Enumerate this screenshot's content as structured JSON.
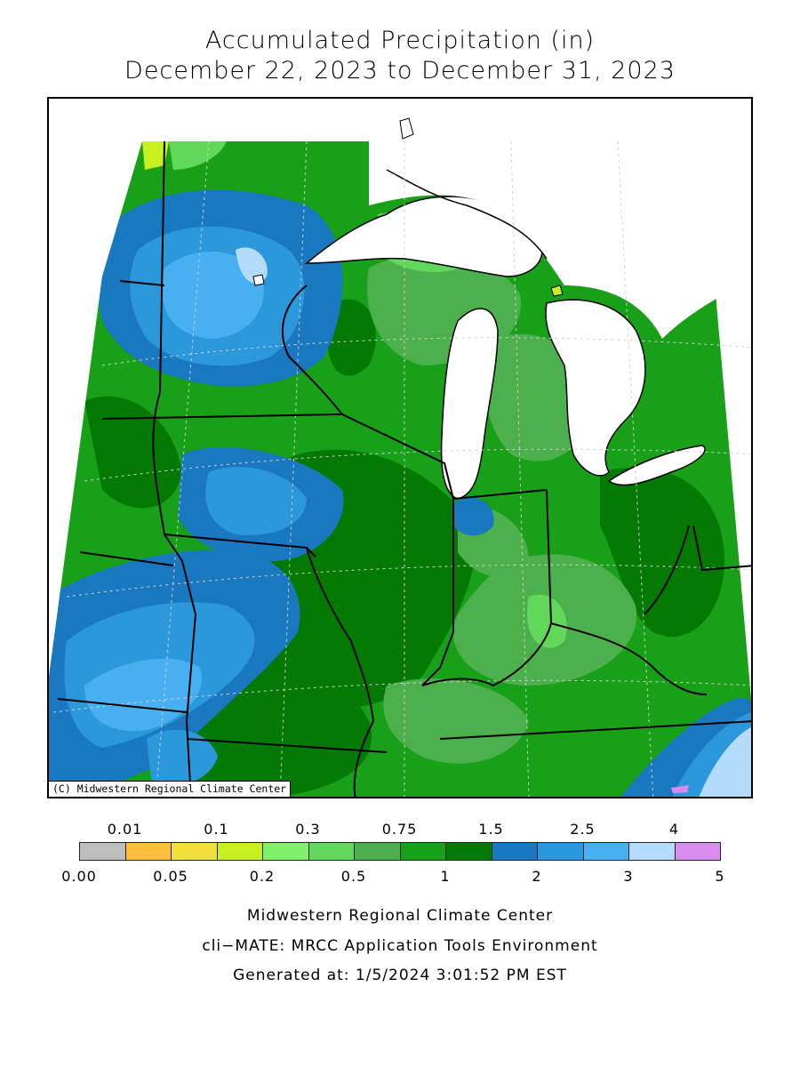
{
  "title": {
    "line1": "Accumulated Precipitation (in)",
    "line2": "December 22, 2023 to December 31, 2023"
  },
  "map": {
    "credit": "(C) Midwestern Regional Climate Center"
  },
  "legend": {
    "upper_labels": [
      "0.01",
      "0.1",
      "0.3",
      "0.75",
      "1.5",
      "2.5",
      "4"
    ],
    "lower_labels": [
      "0.00",
      "0.05",
      "0.2",
      "0.5",
      "1",
      "2",
      "3",
      "5"
    ],
    "colors": [
      "#bdbdbd",
      "#ffbe3a",
      "#f2e03a",
      "#c8f01e",
      "#80f06a",
      "#62d85a",
      "#4cb04c",
      "#18a018",
      "#047a04",
      "#1a78c0",
      "#2c98dc",
      "#48b0f0",
      "#b4dcfa",
      "#d88cf0"
    ]
  },
  "footer": {
    "line1": "Midwestern Regional Climate Center",
    "line2": "cli−MATE: MRCC Application Tools Environment",
    "line3": "Generated at: 1/5/2024 3:01:52 PM EST"
  }
}
